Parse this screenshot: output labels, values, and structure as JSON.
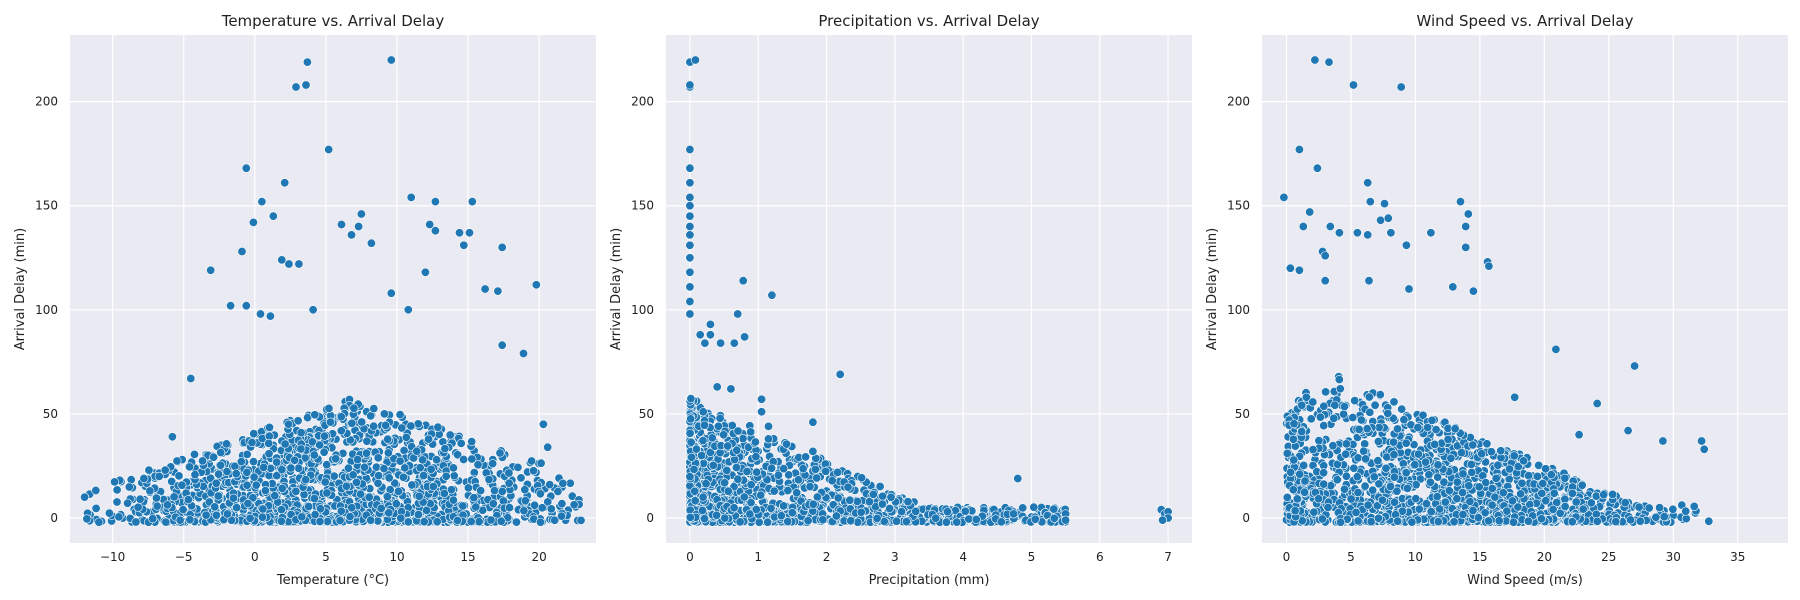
{
  "colors": {
    "marker": "#1f77b4",
    "plot_background": "#eaeaf2",
    "grid": "#ffffff"
  },
  "chart_data": [
    {
      "type": "scatter",
      "id": "temperature",
      "title": "Temperature vs. Arrival Delay",
      "xlabel": "Temperature (°C)",
      "ylabel": "Arrival Delay (min)",
      "xlim": [
        -13,
        24
      ],
      "ylim": [
        -12,
        232
      ],
      "xticks": [
        -10,
        -5,
        0,
        5,
        10,
        15,
        20
      ],
      "xtick_labels": [
        "−10",
        "−5",
        "0",
        "5",
        "10",
        "15",
        "20"
      ],
      "yticks": [
        0,
        50,
        100,
        150,
        200
      ],
      "ytick_labels": [
        "0",
        "50",
        "100",
        "150",
        "200"
      ],
      "grid": true,
      "dense_cloud": {
        "x_range": [
          -12,
          23
        ],
        "y_max_at_peak": 60,
        "peak_x": 7
      },
      "highlight_points": [
        [
          3.7,
          219
        ],
        [
          9.6,
          220
        ],
        [
          2.9,
          207
        ],
        [
          3.6,
          208
        ],
        [
          5.2,
          177
        ],
        [
          -0.6,
          168
        ],
        [
          2.1,
          161
        ],
        [
          11.0,
          154
        ],
        [
          0.5,
          152
        ],
        [
          12.7,
          152
        ],
        [
          15.3,
          152
        ],
        [
          -0.1,
          142
        ],
        [
          6.1,
          141
        ],
        [
          7.5,
          146
        ],
        [
          7.3,
          140
        ],
        [
          1.3,
          145
        ],
        [
          12.3,
          141
        ],
        [
          12.7,
          138
        ],
        [
          14.4,
          137
        ],
        [
          15.1,
          137
        ],
        [
          -3.1,
          119
        ],
        [
          -0.9,
          128
        ],
        [
          6.8,
          136
        ],
        [
          8.2,
          132
        ],
        [
          17.4,
          130
        ],
        [
          14.7,
          131
        ],
        [
          1.9,
          124
        ],
        [
          3.1,
          122
        ],
        [
          2.4,
          122
        ],
        [
          12.0,
          118
        ],
        [
          19.8,
          112
        ],
        [
          9.6,
          108
        ],
        [
          16.2,
          110
        ],
        [
          17.1,
          109
        ],
        [
          -0.6,
          102
        ],
        [
          0.4,
          98
        ],
        [
          1.1,
          97
        ],
        [
          -1.7,
          102
        ],
        [
          4.1,
          100
        ],
        [
          10.8,
          100
        ],
        [
          -4.5,
          67
        ],
        [
          -5.8,
          39
        ],
        [
          -6.3,
          23
        ],
        [
          -7.8,
          19
        ],
        [
          18.9,
          79
        ],
        [
          17.4,
          83
        ],
        [
          20.3,
          45
        ],
        [
          20.6,
          34
        ]
      ]
    },
    {
      "type": "scatter",
      "id": "precipitation",
      "title": "Precipitation vs. Arrival Delay",
      "xlabel": "Precipitation (mm)",
      "ylabel": "Arrival Delay (min)",
      "xlim": [
        -0.35,
        7.35
      ],
      "ylim": [
        -12,
        232
      ],
      "xticks": [
        0,
        1,
        2,
        3,
        4,
        5,
        6,
        7
      ],
      "xtick_labels": [
        "0",
        "1",
        "2",
        "3",
        "4",
        "5",
        "6",
        "7"
      ],
      "yticks": [
        0,
        50,
        100,
        150,
        200
      ],
      "ytick_labels": [
        "0",
        "50",
        "100",
        "150",
        "200"
      ],
      "grid": true,
      "dense_cloud": {
        "x_range": [
          0,
          5.5
        ],
        "y_max_at_peak": 60,
        "peak_x": 0
      },
      "highlight_points": [
        [
          0,
          219
        ],
        [
          0.08,
          220
        ],
        [
          0,
          207
        ],
        [
          0,
          208
        ],
        [
          0,
          177
        ],
        [
          0,
          168
        ],
        [
          0,
          161
        ],
        [
          0,
          154
        ],
        [
          0,
          150
        ],
        [
          0,
          145
        ],
        [
          0,
          140
        ],
        [
          0,
          136
        ],
        [
          0,
          131
        ],
        [
          0,
          125
        ],
        [
          0,
          118
        ],
        [
          0,
          111
        ],
        [
          0,
          104
        ],
        [
          0,
          98
        ],
        [
          0.78,
          114
        ],
        [
          1.2,
          107
        ],
        [
          0.7,
          98
        ],
        [
          0.8,
          87
        ],
        [
          0.15,
          88
        ],
        [
          0.3,
          88
        ],
        [
          0.3,
          93
        ],
        [
          0.45,
          84
        ],
        [
          0.65,
          84
        ],
        [
          0.22,
          84
        ],
        [
          1.05,
          57
        ],
        [
          1.05,
          51
        ],
        [
          1.8,
          46
        ],
        [
          1.8,
          32
        ],
        [
          2.2,
          69
        ],
        [
          4.8,
          19
        ],
        [
          5.5,
          2
        ],
        [
          5.5,
          -1
        ],
        [
          6.9,
          4
        ],
        [
          6.95,
          2
        ],
        [
          7.0,
          3
        ],
        [
          7.0,
          0
        ],
        [
          6.92,
          -1
        ],
        [
          1.15,
          44
        ],
        [
          1.15,
          38
        ],
        [
          0.6,
          62
        ],
        [
          0.4,
          63
        ]
      ]
    },
    {
      "type": "scatter",
      "id": "wind_speed",
      "title": "Wind Speed vs. Arrival Delay",
      "xlabel": "Wind Speed (m/s)",
      "ylabel": "Arrival Delay (min)",
      "xlim": [
        -1.9,
        38.9
      ],
      "ylim": [
        -12,
        232
      ],
      "xticks": [
        0,
        5,
        10,
        15,
        20,
        25,
        30,
        35
      ],
      "xtick_labels": [
        "0",
        "5",
        "10",
        "15",
        "20",
        "25",
        "30",
        "35"
      ],
      "yticks": [
        0,
        50,
        100,
        150,
        200
      ],
      "ytick_labels": [
        "0",
        "50",
        "100",
        "150",
        "200"
      ],
      "grid": true,
      "dense_cloud": {
        "x_range": [
          0,
          37
        ],
        "y_max_at_peak": 70,
        "peak_x": 4
      },
      "highlight_points": [
        [
          2.2,
          220
        ],
        [
          3.3,
          219
        ],
        [
          5.2,
          208
        ],
        [
          8.9,
          207
        ],
        [
          1.0,
          177
        ],
        [
          2.4,
          168
        ],
        [
          6.3,
          161
        ],
        [
          -0.2,
          154
        ],
        [
          6.5,
          152
        ],
        [
          7.6,
          151
        ],
        [
          13.5,
          152
        ],
        [
          14.1,
          146
        ],
        [
          1.8,
          147
        ],
        [
          1.3,
          140
        ],
        [
          3.4,
          140
        ],
        [
          7.3,
          143
        ],
        [
          7.9,
          144
        ],
        [
          4.1,
          137
        ],
        [
          5.5,
          137
        ],
        [
          6.3,
          136
        ],
        [
          8.1,
          137
        ],
        [
          11.2,
          137
        ],
        [
          13.9,
          140
        ],
        [
          9.3,
          131
        ],
        [
          13.9,
          130
        ],
        [
          2.8,
          128
        ],
        [
          3.0,
          126
        ],
        [
          15.6,
          123
        ],
        [
          15.7,
          121
        ],
        [
          0.3,
          120
        ],
        [
          1.0,
          119
        ],
        [
          3.0,
          114
        ],
        [
          6.4,
          114
        ],
        [
          9.5,
          110
        ],
        [
          12.9,
          111
        ],
        [
          14.5,
          109
        ],
        [
          20.9,
          81
        ],
        [
          27.0,
          73
        ],
        [
          24.1,
          55
        ],
        [
          32.2,
          37
        ],
        [
          32.4,
          33
        ],
        [
          29.2,
          37
        ],
        [
          26.5,
          42
        ],
        [
          17.7,
          58
        ],
        [
          22.7,
          40
        ]
      ]
    }
  ]
}
